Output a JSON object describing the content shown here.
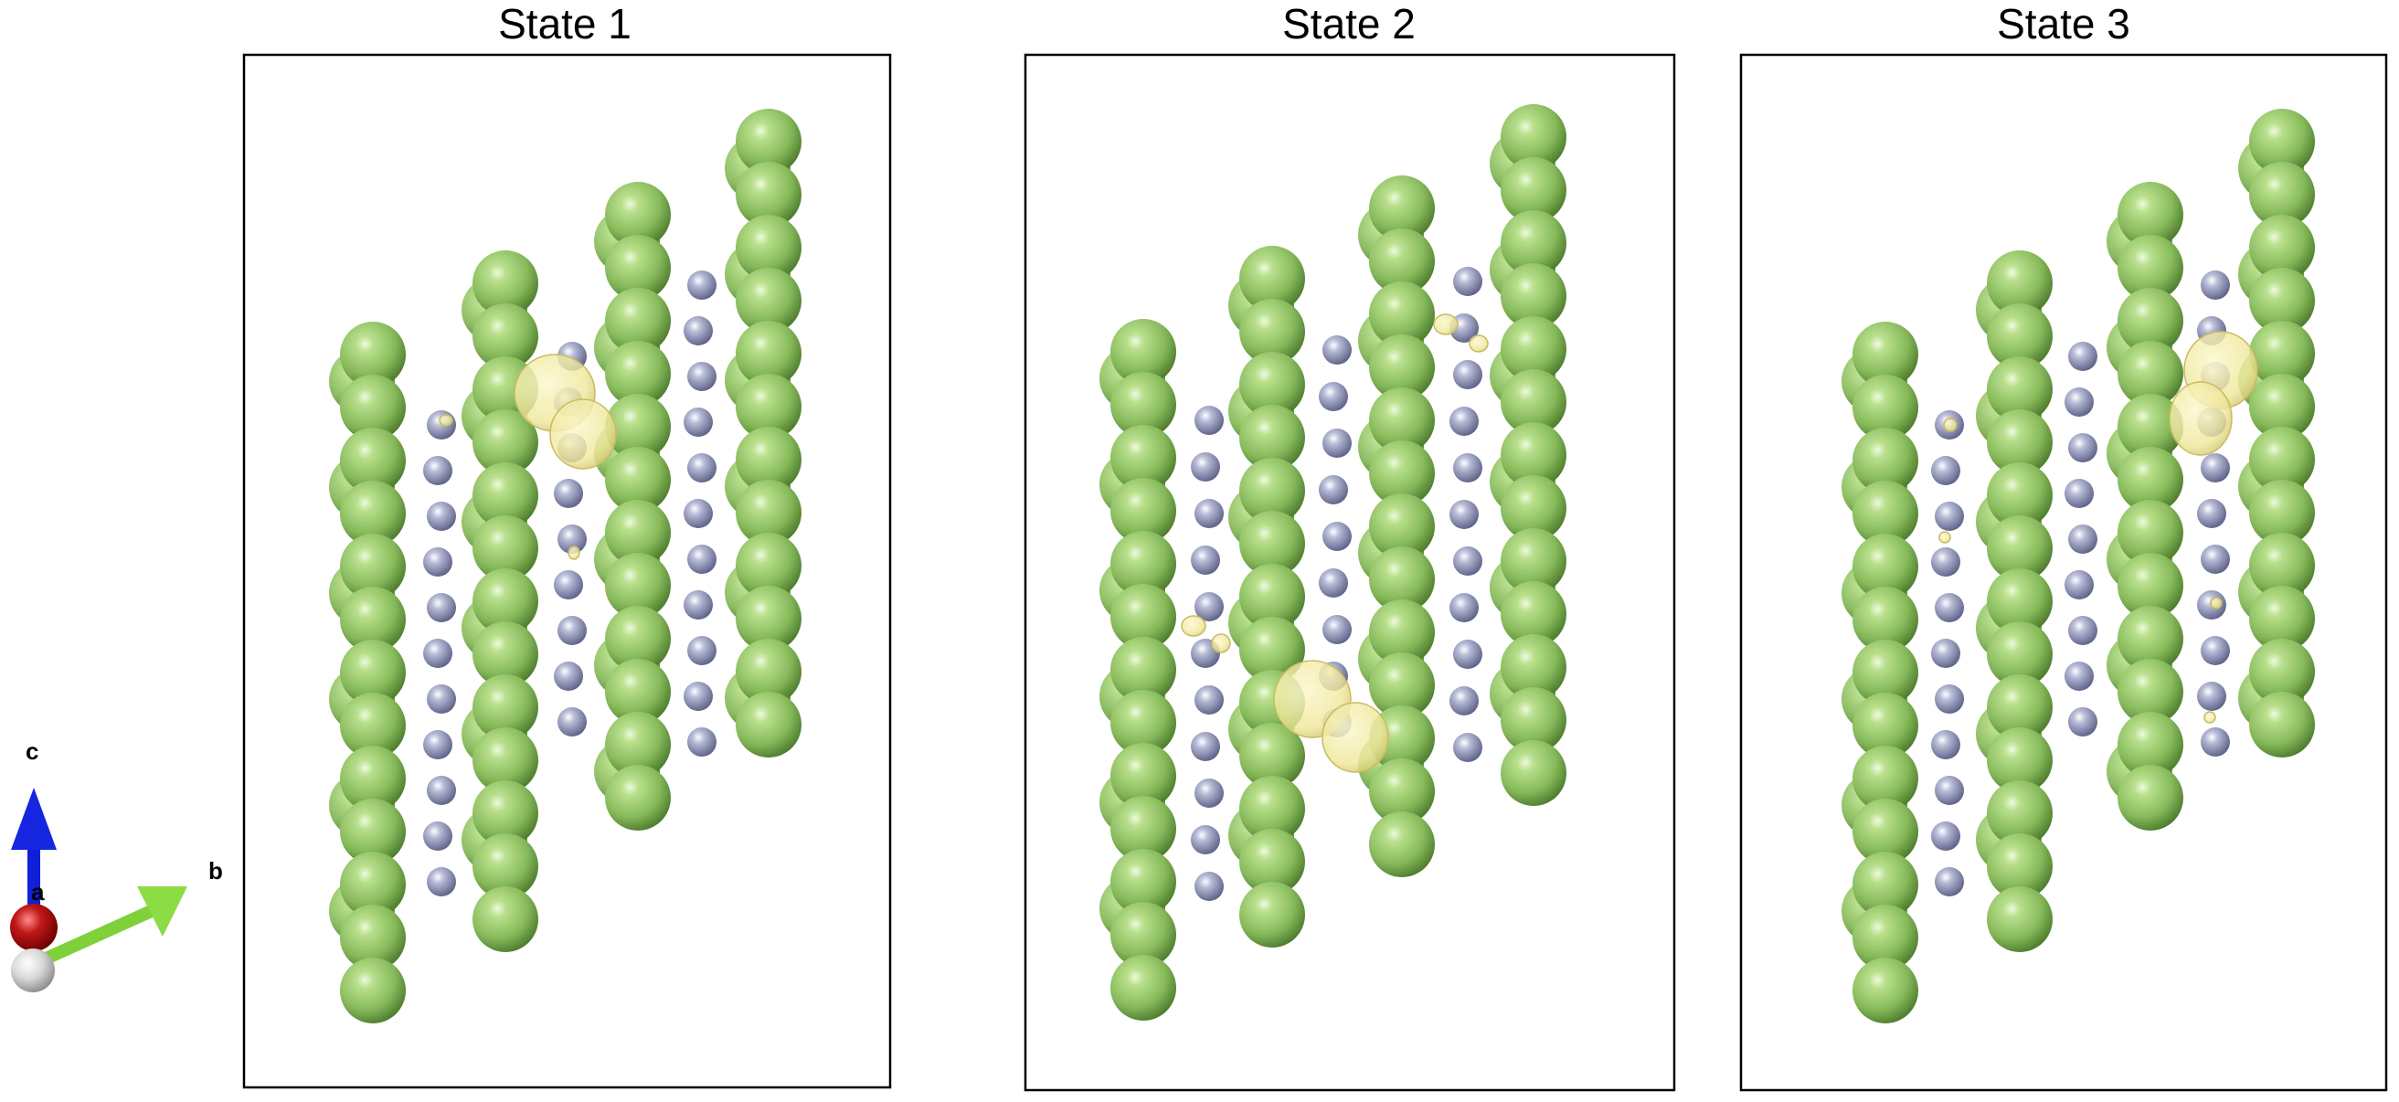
{
  "panels": [
    {
      "title": "State 1"
    },
    {
      "title": "State 2"
    },
    {
      "title": "State 3"
    }
  ],
  "axes_indicator": {
    "c": "c",
    "a": "a",
    "b": "b"
  },
  "colors": {
    "large_atom": "#8fc264",
    "small_atom": "#a3a7c6",
    "isosurface": "#f5f0a0",
    "axis_c": "#1020d8",
    "axis_b": "#7fd03a",
    "axis_a": "#b01010",
    "frame": "#000000"
  }
}
